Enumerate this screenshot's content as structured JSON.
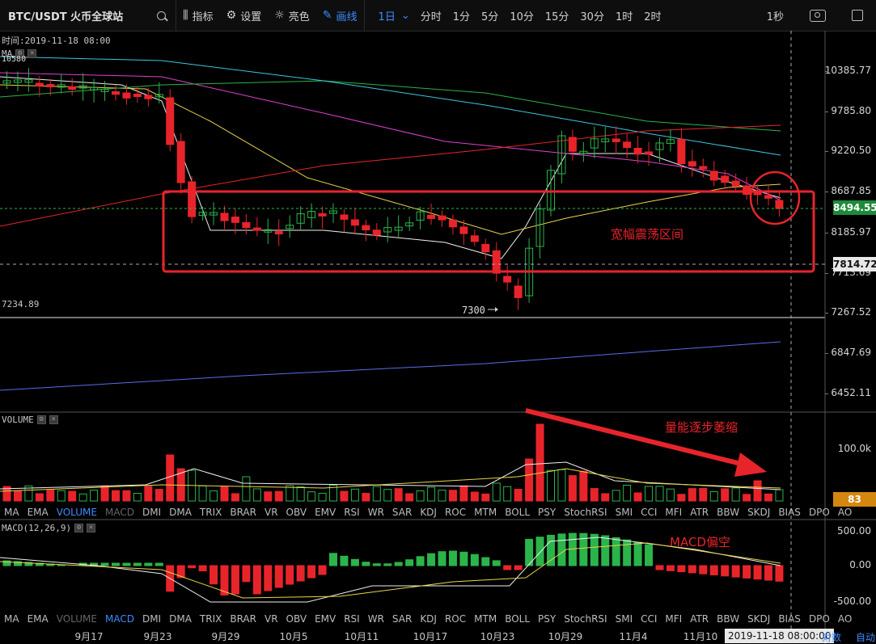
{
  "toolbar": {
    "symbol": "BTC/USDT 火币全球站",
    "search_icon": "search-icon",
    "indicators": "指标",
    "settings": "设置",
    "theme": "亮色",
    "draw": "画线",
    "intervals": [
      "1日",
      "分时",
      "1分",
      "5分",
      "10分",
      "15分",
      "30分",
      "1时",
      "2时"
    ],
    "active_interval": "1日",
    "right_interval": "1秒"
  },
  "main_panel": {
    "time_label": "时间:2019-11-18 08:00",
    "ma_tag": "MA",
    "ma_partial_value": "10580",
    "low_marker": "7234.89",
    "low_arrow_text": "7300",
    "price_axis": [
      "10385.77",
      "9785.80",
      "9220.50",
      "8687.85",
      "8185.97",
      "7713.69",
      "7267.52",
      "6847.69",
      "6452.11"
    ],
    "current_price": "8494.55",
    "crosshair_price": "7814.72",
    "annotation_range": "宽幅震荡区间"
  },
  "volume_panel": {
    "tag": "VOLUME",
    "axis": [
      "100.0k"
    ],
    "current_volume": "83",
    "annotation": "量能逐步萎缩"
  },
  "macd_panel": {
    "tag": "MACD(12,26,9)",
    "axis": [
      "500.00",
      "0.00",
      "-500.00"
    ],
    "annotation": "MACD偏空"
  },
  "indicator_tabs_top": {
    "items": [
      "MA",
      "EMA",
      "VOLUME",
      "MACD",
      "DMI",
      "DMA",
      "TRIX",
      "BRAR",
      "VR",
      "OBV",
      "EMV",
      "RSI",
      "WR",
      "SAR",
      "KDJ",
      "ROC",
      "MTM",
      "BOLL",
      "PSY",
      "StochRSI",
      "SMI",
      "CCI",
      "MFI",
      "ATR",
      "BBW",
      "SKDJ",
      "BIAS",
      "DPO",
      "AO"
    ],
    "active": "VOLUME",
    "dim": "MACD"
  },
  "indicator_tabs_bottom": {
    "items": [
      "MA",
      "EMA",
      "VOLUME",
      "MACD",
      "DMI",
      "DMA",
      "TRIX",
      "BRAR",
      "VR",
      "OBV",
      "EMV",
      "RSI",
      "WR",
      "SAR",
      "KDJ",
      "ROC",
      "MTM",
      "BOLL",
      "PSY",
      "StochRSI",
      "SMI",
      "CCI",
      "MFI",
      "ATR",
      "BBW",
      "SKDJ",
      "BIAS",
      "DPO",
      "AO"
    ],
    "active": "MACD",
    "dim": "VOLUME"
  },
  "time_axis": {
    "labels": [
      "9月17",
      "9月23",
      "9月29",
      "10月5",
      "10月11",
      "10月17",
      "10月23",
      "10月29",
      "11月4",
      "11月10"
    ],
    "crosshair_time": "2019-11-18 08:00:00",
    "log_label": "对数",
    "auto_label": "自动"
  },
  "colors": {
    "up": "#2bb44a",
    "down": "#e8242b",
    "accent": "#3d8cff",
    "current_price_bg": "#1e8b3a",
    "volume_tag_bg": "#d4870f",
    "annotation": "#e8242b"
  }
}
